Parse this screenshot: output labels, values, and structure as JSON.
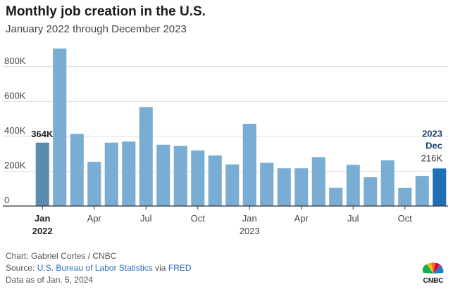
{
  "title": "Monthly job creation in the U.S.",
  "subtitle": "January 2022 through December 2023",
  "chart_data": {
    "type": "bar",
    "categories": [
      "2022-01",
      "2022-02",
      "2022-03",
      "2022-04",
      "2022-05",
      "2022-06",
      "2022-07",
      "2022-08",
      "2022-09",
      "2022-10",
      "2022-11",
      "2022-12",
      "2023-01",
      "2023-02",
      "2023-03",
      "2023-04",
      "2023-05",
      "2023-06",
      "2023-07",
      "2023-08",
      "2023-09",
      "2023-10",
      "2023-11",
      "2023-12"
    ],
    "values": [
      364000,
      904000,
      414000,
      254000,
      364000,
      370000,
      568000,
      352000,
      345000,
      319000,
      290000,
      239000,
      472000,
      248000,
      217000,
      217000,
      281000,
      105000,
      236000,
      165000,
      262000,
      105000,
      173000,
      216000
    ],
    "ylim": [
      0,
      900000
    ],
    "y_ticks": [
      {
        "value": 0,
        "label": "0"
      },
      {
        "value": 200000,
        "label": "200K"
      },
      {
        "value": 400000,
        "label": "400K"
      },
      {
        "value": 600000,
        "label": "600K"
      },
      {
        "value": 800000,
        "label": "800K"
      }
    ],
    "x_ticks": [
      {
        "index": 0,
        "label": "Jan",
        "bold": true
      },
      {
        "index": 3,
        "label": "Apr"
      },
      {
        "index": 6,
        "label": "Jul"
      },
      {
        "index": 9,
        "label": "Oct"
      },
      {
        "index": 12,
        "label": "Jan"
      },
      {
        "index": 15,
        "label": "Apr"
      },
      {
        "index": 18,
        "label": "Jul"
      },
      {
        "index": 21,
        "label": "Oct"
      }
    ],
    "year_labels": [
      {
        "index": 0,
        "label": "2022",
        "bold": true
      },
      {
        "index": 12,
        "label": "2023",
        "bold": false
      }
    ],
    "annotations": {
      "first": {
        "index": 0,
        "text": "364K"
      },
      "last": {
        "index": 23,
        "line1": "2023",
        "line2": "Dec",
        "value_text": "216K"
      }
    },
    "grid": true,
    "colors": {
      "bar": "#7aadd4",
      "first_bar": "#5c8bb0",
      "last_bar": "#1f6fb5",
      "grid": "#dcdcdc",
      "axis": "#333333"
    }
  },
  "footer": {
    "credit": "Chart: Gabriel Cortes / CNBC",
    "source_prefix": "Source: ",
    "source_link": "U.S. Bureau of Labor Statistics",
    "source_mid": " via ",
    "source_link2": "FRED",
    "date_note": "Data as of Jan. 5, 2024"
  },
  "logo": {
    "text": "CNBC",
    "icon": "peacock-icon"
  }
}
